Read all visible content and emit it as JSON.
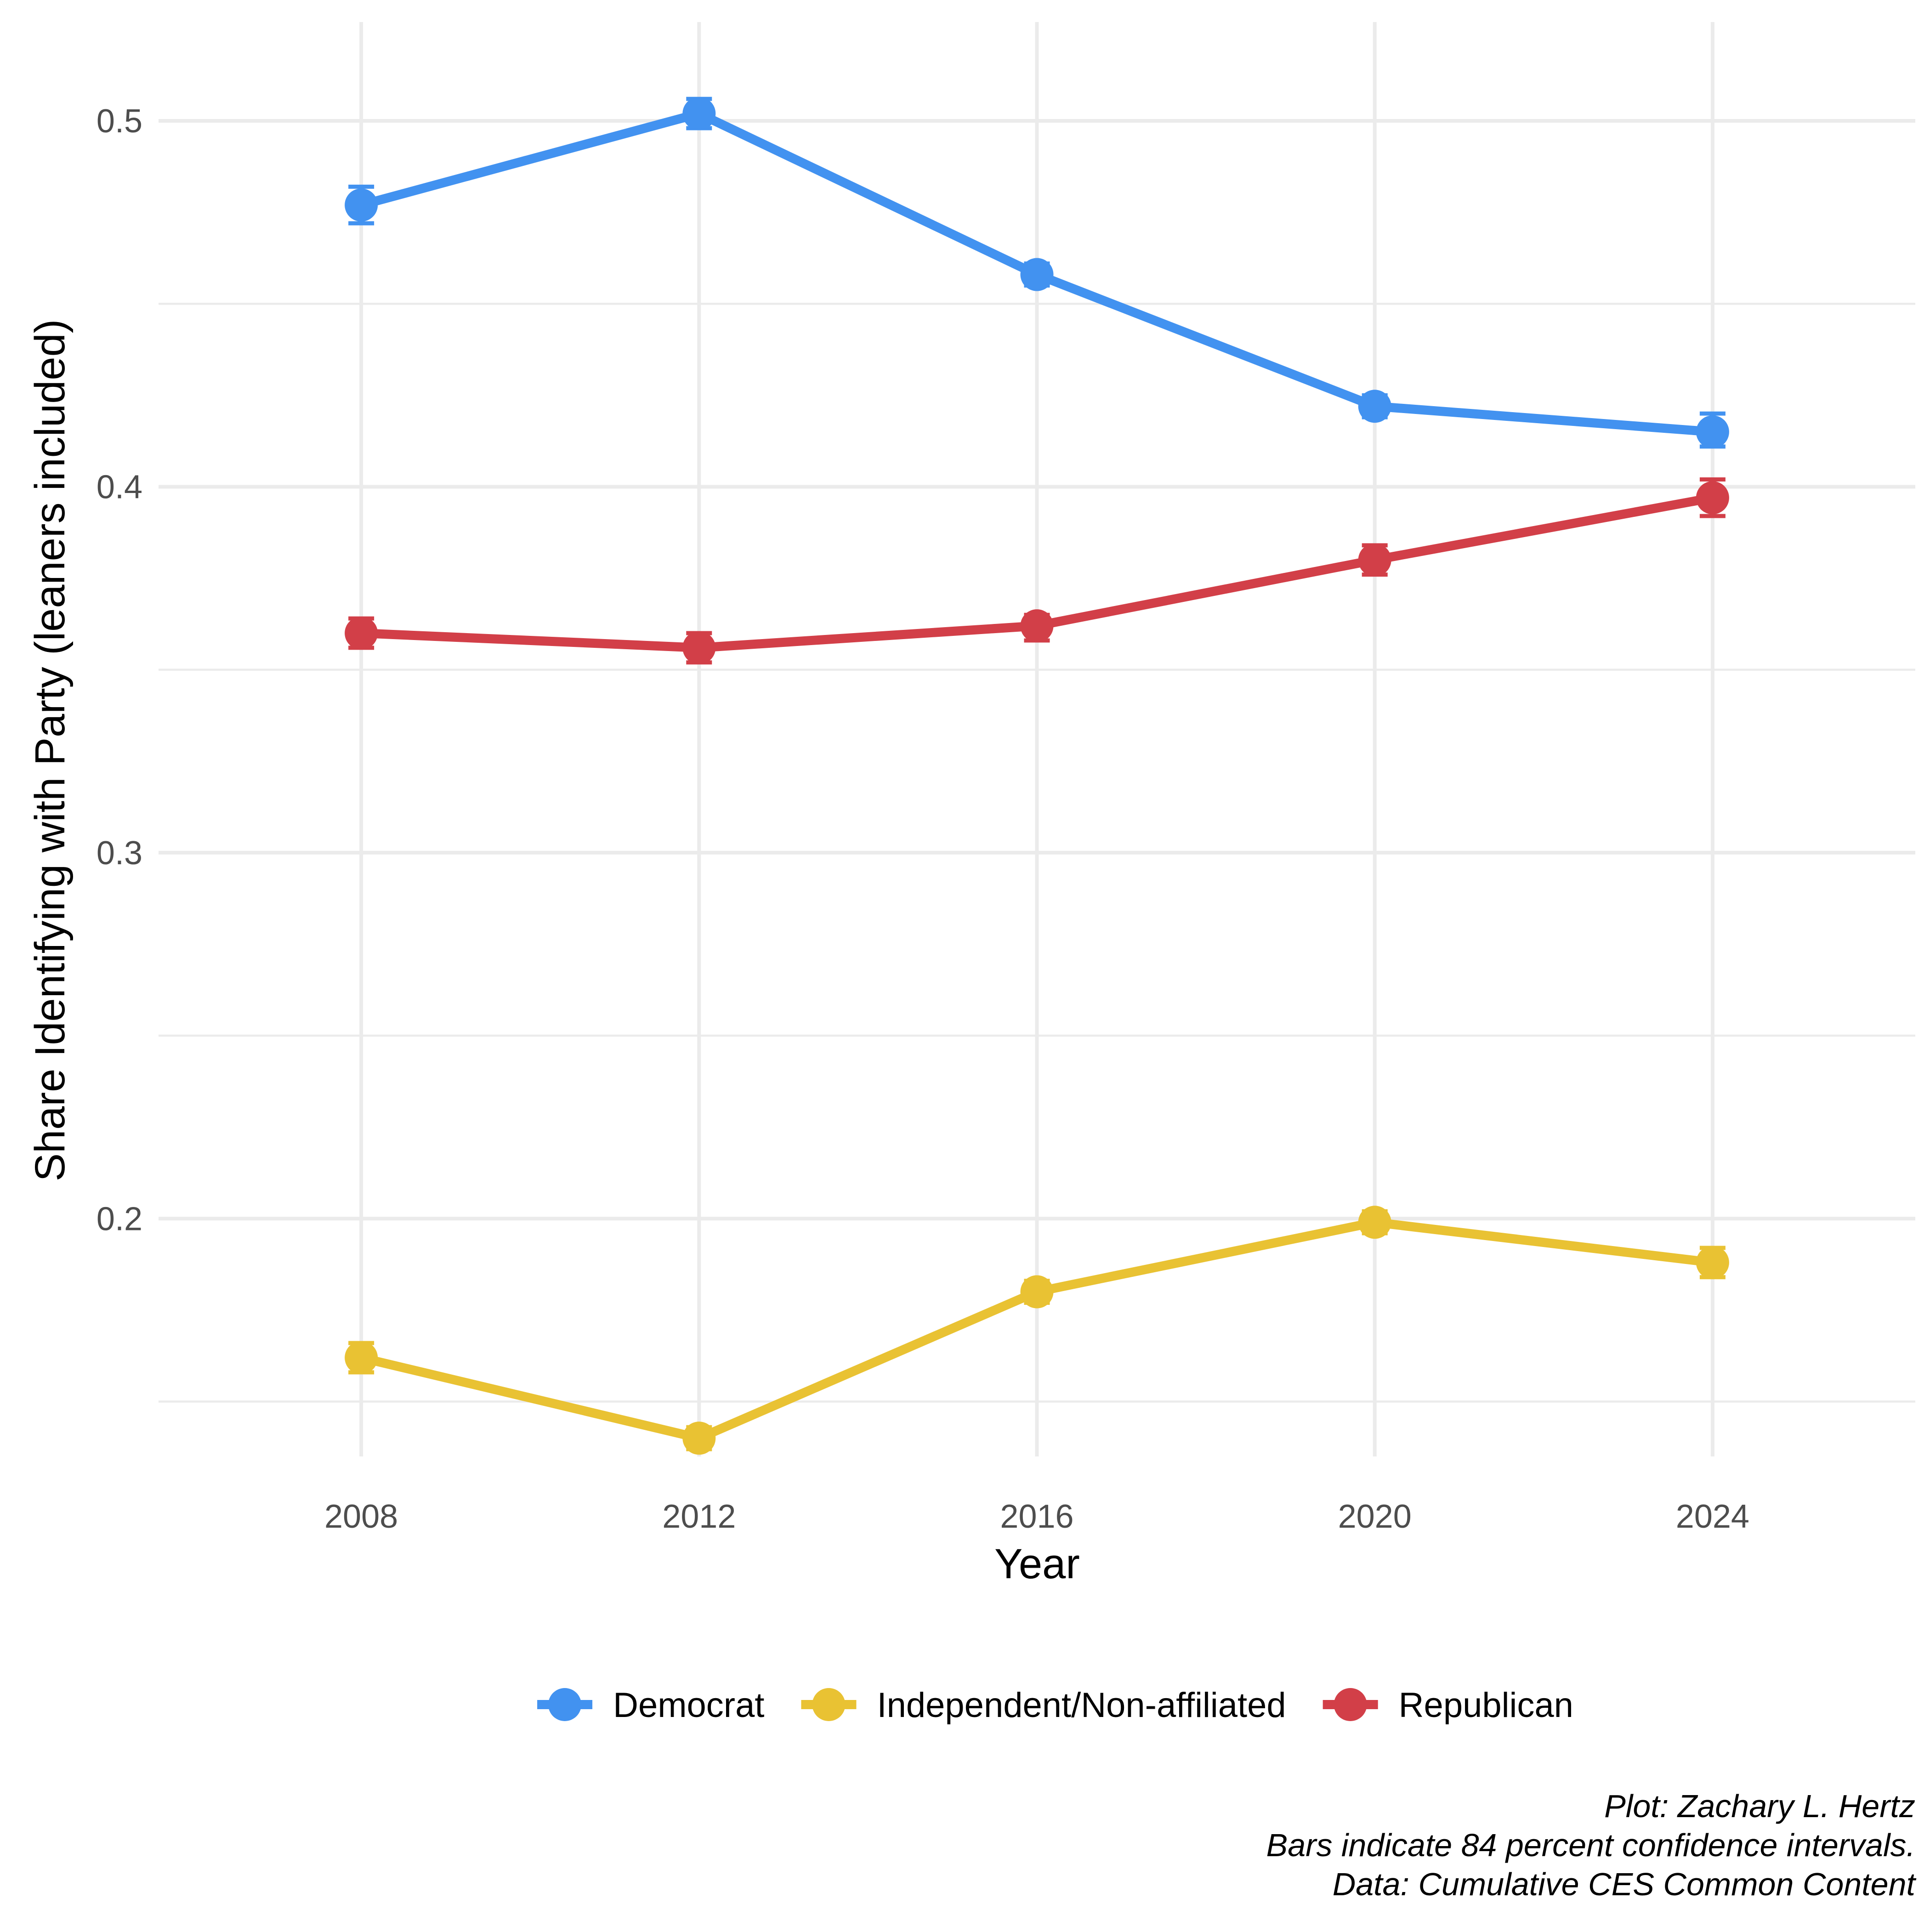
{
  "chart_data": {
    "type": "line",
    "xlabel": "Year",
    "ylabel": "Share Identifying with Party (leaners included)",
    "x": [
      2008,
      2012,
      2016,
      2020,
      2024
    ],
    "x_ticks": [
      "2008",
      "2012",
      "2016",
      "2020",
      "2024"
    ],
    "y_ticks": [
      "0.2",
      "0.3",
      "0.4",
      "0.5"
    ],
    "xlim": [
      2005.6,
      2026.4
    ],
    "ylim": [
      0.135,
      0.527
    ],
    "grid": true,
    "legend_position": "bottom",
    "series": [
      {
        "name": "Democrat",
        "color": "#4292f0",
        "values": [
          0.477,
          0.502,
          0.458,
          0.422,
          0.415
        ],
        "ci": [
          [
            0.472,
            0.482
          ],
          [
            0.498,
            0.506
          ],
          [
            0.455,
            0.461
          ],
          [
            0.419,
            0.425
          ],
          [
            0.411,
            0.42
          ]
        ]
      },
      {
        "name": "Independent/Non-affiliated",
        "color": "#e9c233",
        "values": [
          0.162,
          0.14,
          0.18,
          0.199,
          0.188
        ],
        "ci": [
          [
            0.158,
            0.166
          ],
          [
            0.137,
            0.143
          ],
          [
            0.177,
            0.183
          ],
          [
            0.196,
            0.202
          ],
          [
            0.184,
            0.192
          ]
        ]
      },
      {
        "name": "Republican",
        "color": "#d23f48",
        "values": [
          0.36,
          0.356,
          0.362,
          0.38,
          0.397
        ],
        "ci": [
          [
            0.356,
            0.364
          ],
          [
            0.352,
            0.36
          ],
          [
            0.358,
            0.365
          ],
          [
            0.376,
            0.384
          ],
          [
            0.392,
            0.402
          ]
        ]
      }
    ]
  },
  "caption": [
    "Plot: Zachary L. Hertz",
    "Bars indicate 84 percent confidence intervals.",
    "Data: Cumulative CES Common Content"
  ]
}
